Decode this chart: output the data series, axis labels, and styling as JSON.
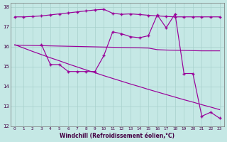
{
  "xlabel": "Windchill (Refroidissement éolien,°C)",
  "background_color": "#c5e8e5",
  "grid_color": "#a8d0cc",
  "line_color": "#990099",
  "xlim": [
    -0.5,
    23.5
  ],
  "ylim": [
    12,
    18.2
  ],
  "yticks": [
    12,
    13,
    14,
    15,
    16,
    17,
    18
  ],
  "xticks": [
    0,
    1,
    2,
    3,
    4,
    5,
    6,
    7,
    8,
    9,
    10,
    11,
    12,
    13,
    14,
    15,
    16,
    17,
    18,
    19,
    20,
    21,
    22,
    23
  ],
  "line1_x": [
    0,
    1,
    2,
    3,
    4,
    5,
    6,
    7,
    8,
    9,
    10,
    11,
    12,
    13,
    14,
    15,
    16,
    17,
    18,
    19,
    20,
    21,
    22,
    23
  ],
  "line1_y": [
    17.5,
    17.5,
    17.52,
    17.55,
    17.6,
    17.65,
    17.7,
    17.75,
    17.8,
    17.85,
    17.88,
    17.68,
    17.63,
    17.65,
    17.62,
    17.58,
    17.55,
    17.52,
    17.5,
    17.5,
    17.5,
    17.5,
    17.5,
    17.5
  ],
  "line2_x": [
    0,
    1,
    2,
    3,
    4,
    5,
    6,
    7,
    8,
    9,
    10,
    11,
    12,
    13,
    14,
    15,
    16,
    17,
    18,
    19,
    20,
    21,
    22,
    23
  ],
  "line2_y": [
    16.08,
    16.07,
    16.06,
    16.05,
    16.04,
    16.03,
    16.02,
    16.01,
    16.0,
    15.99,
    15.98,
    15.97,
    15.96,
    15.95,
    15.94,
    15.93,
    15.85,
    15.83,
    15.82,
    15.81,
    15.8,
    15.79,
    15.79,
    15.79
  ],
  "line3_x": [
    0,
    1,
    2,
    3,
    4,
    5,
    6,
    7,
    8,
    9,
    10,
    11,
    12,
    13,
    14,
    15,
    16,
    17,
    18,
    19,
    20,
    21,
    22,
    23
  ],
  "line3_y": [
    16.1,
    15.93,
    15.76,
    15.6,
    15.44,
    15.29,
    15.13,
    14.98,
    14.83,
    14.69,
    14.54,
    14.4,
    14.26,
    14.12,
    13.99,
    13.85,
    13.72,
    13.59,
    13.46,
    13.33,
    13.21,
    13.08,
    12.96,
    12.83
  ],
  "line4_x": [
    3,
    4,
    5,
    6,
    7,
    8,
    9,
    10,
    11,
    12,
    13,
    14,
    15,
    16,
    17,
    18,
    19,
    20,
    21,
    22,
    23
  ],
  "line4_y": [
    16.1,
    15.1,
    15.1,
    14.75,
    14.75,
    14.75,
    14.75,
    15.55,
    16.75,
    16.65,
    16.5,
    16.45,
    16.55,
    17.6,
    16.95,
    17.65,
    14.65,
    14.65,
    12.5,
    12.7,
    12.4
  ]
}
